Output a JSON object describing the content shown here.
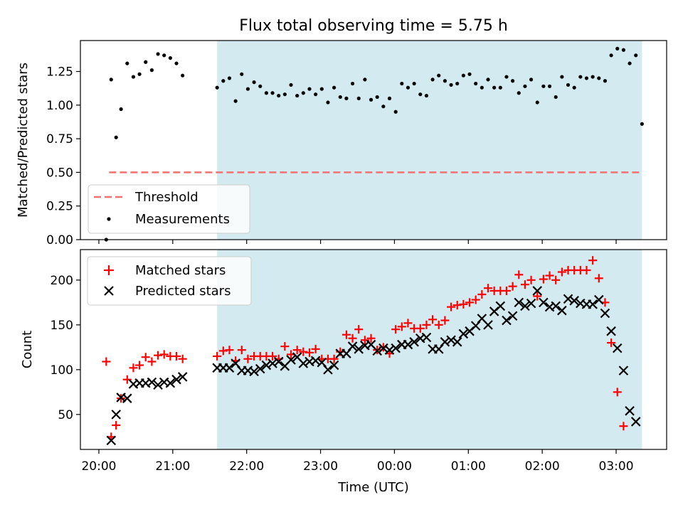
{
  "chart_data": [
    {
      "type": "scatter",
      "title": "Flux total observing time = 5.75 h",
      "xlabel": "",
      "ylabel": "Matched/Predicted stars",
      "ylim": [
        0,
        1.48
      ],
      "yticks": [
        "0.00",
        "0.25",
        "0.50",
        "0.75",
        "1.00",
        "1.25"
      ],
      "ytick_values": [
        0,
        0.25,
        0.5,
        0.75,
        1.0,
        1.25
      ],
      "legend_location": "lower-left",
      "threshold": {
        "name": "Threshold",
        "value": 0.5,
        "color": "#f27272"
      },
      "highlight": {
        "start": "21:36",
        "end": "03:21",
        "color": "#d4eaf1"
      },
      "series": [
        {
          "name": "Measurements",
          "color": "#000000",
          "points": [
            [
              "20:06",
              0.0
            ],
            [
              "20:10",
              1.19
            ],
            [
              "20:14",
              0.76
            ],
            [
              "20:18",
              0.97
            ],
            [
              "20:23",
              1.31
            ],
            [
              "20:28",
              1.21
            ],
            [
              "20:33",
              1.23
            ],
            [
              "20:38",
              1.32
            ],
            [
              "20:43",
              1.26
            ],
            [
              "20:48",
              1.38
            ],
            [
              "20:53",
              1.37
            ],
            [
              "20:58",
              1.35
            ],
            [
              "21:03",
              1.31
            ],
            [
              "21:08",
              1.22
            ],
            [
              "21:36",
              1.13
            ],
            [
              "21:41",
              1.18
            ],
            [
              "21:46",
              1.2
            ],
            [
              "21:51",
              1.03
            ],
            [
              "21:56",
              1.23
            ],
            [
              "22:01",
              1.12
            ],
            [
              "22:06",
              1.17
            ],
            [
              "22:11",
              1.14
            ],
            [
              "22:16",
              1.09
            ],
            [
              "22:21",
              1.09
            ],
            [
              "22:26",
              1.07
            ],
            [
              "22:31",
              1.08
            ],
            [
              "22:36",
              1.15
            ],
            [
              "22:41",
              1.07
            ],
            [
              "22:46",
              1.09
            ],
            [
              "22:51",
              1.12
            ],
            [
              "22:56",
              1.08
            ],
            [
              "23:01",
              1.12
            ],
            [
              "23:06",
              1.02
            ],
            [
              "23:11",
              1.13
            ],
            [
              "23:16",
              1.06
            ],
            [
              "23:21",
              1.05
            ],
            [
              "23:26",
              1.16
            ],
            [
              "23:31",
              1.05
            ],
            [
              "23:36",
              1.19
            ],
            [
              "23:41",
              1.04
            ],
            [
              "23:46",
              1.06
            ],
            [
              "23:51",
              0.99
            ],
            [
              "23:56",
              1.05
            ],
            [
              "00:01",
              0.95
            ],
            [
              "00:06",
              1.16
            ],
            [
              "00:11",
              1.13
            ],
            [
              "00:16",
              1.16
            ],
            [
              "00:21",
              1.08
            ],
            [
              "00:26",
              1.07
            ],
            [
              "00:31",
              1.19
            ],
            [
              "00:36",
              1.22
            ],
            [
              "00:41",
              1.18
            ],
            [
              "00:46",
              1.15
            ],
            [
              "00:51",
              1.16
            ],
            [
              "00:56",
              1.22
            ],
            [
              "01:01",
              1.23
            ],
            [
              "01:06",
              1.16
            ],
            [
              "01:11",
              1.13
            ],
            [
              "01:16",
              1.19
            ],
            [
              "01:21",
              1.13
            ],
            [
              "01:26",
              1.13
            ],
            [
              "01:31",
              1.21
            ],
            [
              "01:36",
              1.18
            ],
            [
              "01:41",
              1.09
            ],
            [
              "01:46",
              1.14
            ],
            [
              "01:51",
              1.19
            ],
            [
              "01:56",
              1.02
            ],
            [
              "02:01",
              1.14
            ],
            [
              "02:06",
              1.14
            ],
            [
              "02:11",
              1.06
            ],
            [
              "02:16",
              1.21
            ],
            [
              "02:21",
              1.15
            ],
            [
              "02:26",
              1.13
            ],
            [
              "02:31",
              1.21
            ],
            [
              "02:36",
              1.2
            ],
            [
              "02:41",
              1.21
            ],
            [
              "02:46",
              1.2
            ],
            [
              "02:51",
              1.18
            ],
            [
              "02:56",
              1.37
            ],
            [
              "03:01",
              1.42
            ],
            [
              "03:06",
              1.41
            ],
            [
              "03:11",
              1.31
            ],
            [
              "03:16",
              1.37
            ],
            [
              "03:21",
              0.86
            ]
          ]
        }
      ]
    },
    {
      "type": "scatter",
      "title": "",
      "xlabel": "Time (UTC)",
      "ylabel": "Count",
      "ylim": [
        11,
        234
      ],
      "yticks": [
        "50",
        "100",
        "150",
        "200"
      ],
      "ytick_values": [
        50,
        100,
        150,
        200
      ],
      "xlim": [
        "19:45",
        "03:41"
      ],
      "xticks": [
        "20:00",
        "21:00",
        "22:00",
        "23:00",
        "00:00",
        "01:00",
        "02:00",
        "03:00"
      ],
      "legend_location": "upper-left",
      "highlight": {
        "start": "21:36",
        "end": "03:21",
        "color": "#d4eaf1"
      },
      "series": [
        {
          "name": "Matched stars",
          "color": "#ff0000",
          "marker": "plus",
          "points": [
            [
              "20:06",
              109
            ],
            [
              "20:10",
              25
            ],
            [
              "20:14",
              38
            ],
            [
              "20:18",
              68
            ],
            [
              "20:23",
              89
            ],
            [
              "20:28",
              102
            ],
            [
              "20:33",
              105
            ],
            [
              "20:38",
              114
            ],
            [
              "20:43",
              109
            ],
            [
              "20:48",
              116
            ],
            [
              "20:53",
              117
            ],
            [
              "20:58",
              115
            ],
            [
              "21:03",
              115
            ],
            [
              "21:08",
              112
            ],
            [
              "21:36",
              115
            ],
            [
              "21:41",
              121
            ],
            [
              "21:46",
              122
            ],
            [
              "21:51",
              110
            ],
            [
              "21:56",
              122
            ],
            [
              "22:01",
              112
            ],
            [
              "22:06",
              115
            ],
            [
              "22:11",
              115
            ],
            [
              "22:16",
              115
            ],
            [
              "22:21",
              115
            ],
            [
              "22:26",
              112
            ],
            [
              "22:31",
              126
            ],
            [
              "22:36",
              117
            ],
            [
              "22:41",
              122
            ],
            [
              "22:46",
              120
            ],
            [
              "22:51",
              119
            ],
            [
              "22:56",
              123
            ],
            [
              "23:01",
              112
            ],
            [
              "23:06",
              112
            ],
            [
              "23:11",
              112
            ],
            [
              "23:16",
              120
            ],
            [
              "23:21",
              139
            ],
            [
              "23:26",
              135
            ],
            [
              "23:31",
              145
            ],
            [
              "23:36",
              133
            ],
            [
              "23:41",
              135
            ],
            [
              "23:46",
              122
            ],
            [
              "23:51",
              125
            ],
            [
              "23:56",
              118
            ],
            [
              "00:01",
              145
            ],
            [
              "00:06",
              148
            ],
            [
              "00:11",
              152
            ],
            [
              "00:16",
              146
            ],
            [
              "00:21",
              146
            ],
            [
              "00:26",
              150
            ],
            [
              "00:31",
              156
            ],
            [
              "00:36",
              150
            ],
            [
              "00:41",
              155
            ],
            [
              "00:46",
              170
            ],
            [
              "00:51",
              172
            ],
            [
              "00:56",
              173
            ],
            [
              "01:01",
              175
            ],
            [
              "01:06",
              178
            ],
            [
              "01:11",
              184
            ],
            [
              "01:16",
              191
            ],
            [
              "01:21",
              188
            ],
            [
              "01:26",
              188
            ],
            [
              "01:31",
              188
            ],
            [
              "01:36",
              193
            ],
            [
              "01:41",
              206
            ],
            [
              "01:46",
              195
            ],
            [
              "01:51",
              200
            ],
            [
              "01:56",
              182
            ],
            [
              "02:01",
              201
            ],
            [
              "02:06",
              205
            ],
            [
              "02:11",
              200
            ],
            [
              "02:16",
              209
            ],
            [
              "02:21",
              211
            ],
            [
              "02:26",
              211
            ],
            [
              "02:31",
              211
            ],
            [
              "02:36",
              211
            ],
            [
              "02:41",
              222
            ],
            [
              "02:46",
              202
            ],
            [
              "02:51",
              175
            ],
            [
              "02:56",
              130
            ],
            [
              "03:01",
              75
            ],
            [
              "03:06",
              37
            ]
          ]
        },
        {
          "name": "Predicted stars",
          "color": "#000000",
          "marker": "x",
          "points": [
            [
              "20:10",
              21
            ],
            [
              "20:14",
              50
            ],
            [
              "20:18",
              69
            ],
            [
              "20:23",
              68
            ],
            [
              "20:28",
              84
            ],
            [
              "20:33",
              85
            ],
            [
              "20:38",
              85
            ],
            [
              "20:43",
              86
            ],
            [
              "20:48",
              83
            ],
            [
              "20:53",
              86
            ],
            [
              "20:58",
              85
            ],
            [
              "21:03",
              89
            ],
            [
              "21:08",
              92
            ],
            [
              "21:36",
              102
            ],
            [
              "21:41",
              102
            ],
            [
              "21:46",
              102
            ],
            [
              "21:51",
              107
            ],
            [
              "21:56",
              99
            ],
            [
              "22:01",
              99
            ],
            [
              "22:06",
              98
            ],
            [
              "22:11",
              101
            ],
            [
              "22:16",
              105
            ],
            [
              "22:21",
              107
            ],
            [
              "22:26",
              109
            ],
            [
              "22:31",
              104
            ],
            [
              "22:36",
              111
            ],
            [
              "22:41",
              114
            ],
            [
              "22:46",
              107
            ],
            [
              "22:51",
              109
            ],
            [
              "22:56",
              110
            ],
            [
              "23:01",
              108
            ],
            [
              "23:06",
              100
            ],
            [
              "23:11",
              105
            ],
            [
              "23:16",
              118
            ],
            [
              "23:21",
              118
            ],
            [
              "23:26",
              126
            ],
            [
              "23:31",
              123
            ],
            [
              "23:36",
              127
            ],
            [
              "23:41",
              128
            ],
            [
              "23:46",
              121
            ],
            [
              "23:51",
              124
            ],
            [
              "23:56",
              122
            ],
            [
              "00:01",
              124
            ],
            [
              "00:06",
              128
            ],
            [
              "00:11",
              128
            ],
            [
              "00:16",
              131
            ],
            [
              "00:21",
              135
            ],
            [
              "00:26",
              136
            ],
            [
              "00:31",
              123
            ],
            [
              "00:36",
              123
            ],
            [
              "00:41",
              131
            ],
            [
              "00:46",
              133
            ],
            [
              "00:51",
              131
            ],
            [
              "00:56",
              140
            ],
            [
              "01:01",
              143
            ],
            [
              "01:06",
              149
            ],
            [
              "01:11",
              157
            ],
            [
              "01:16",
              150
            ],
            [
              "01:21",
              165
            ],
            [
              "01:26",
              171
            ],
            [
              "01:31",
              155
            ],
            [
              "01:36",
              160
            ],
            [
              "01:41",
              175
            ],
            [
              "01:46",
              171
            ],
            [
              "01:51",
              174
            ],
            [
              "01:56",
              188
            ],
            [
              "02:01",
              175
            ],
            [
              "02:06",
              170
            ],
            [
              "02:11",
              171
            ],
            [
              "02:16",
              166
            ],
            [
              "02:21",
              179
            ],
            [
              "02:26",
              177
            ],
            [
              "02:31",
              174
            ],
            [
              "02:36",
              173
            ],
            [
              "02:41",
              173
            ],
            [
              "02:46",
              178
            ],
            [
              "02:51",
              163
            ],
            [
              "02:56",
              143
            ],
            [
              "03:01",
              124
            ],
            [
              "03:06",
              99
            ],
            [
              "03:11",
              54
            ],
            [
              "03:16",
              42
            ]
          ]
        }
      ]
    }
  ]
}
